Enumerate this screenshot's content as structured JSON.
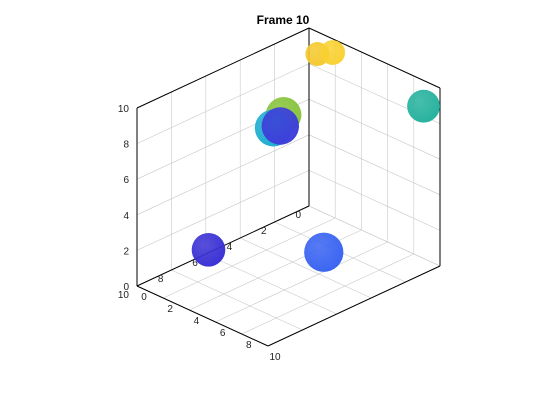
{
  "chart_data": {
    "type": "scatter",
    "title": "Frame 10",
    "xlabel": "",
    "ylabel": "",
    "zlabel": "",
    "xlim": [
      0,
      10
    ],
    "ylim": [
      0,
      10
    ],
    "zlim": [
      0,
      10
    ],
    "grid": true,
    "ticks": {
      "x": [
        "0",
        "2",
        "4",
        "6",
        "8",
        "10"
      ],
      "y": [
        "0",
        "2",
        "4",
        "6",
        "8",
        "10"
      ],
      "z": [
        "0",
        "2",
        "4",
        "6",
        "8",
        "10"
      ]
    },
    "points": [
      {
        "x": 0.3,
        "y": 2.2,
        "z": 9.5,
        "color": "#f9d132"
      },
      {
        "x": 0.5,
        "y": 1.3,
        "z": 9.2,
        "color": "#f5c92f"
      },
      {
        "x": 0.5,
        "y": 9.4,
        "z": 9.0,
        "color": "#27b29e"
      },
      {
        "x": 6.2,
        "y": 6.2,
        "z": 10.0,
        "color": "#88c43d"
      },
      {
        "x": 7.0,
        "y": 7.0,
        "z": 10.0,
        "color": "#3d3fd9"
      },
      {
        "x": 7.1,
        "y": 6.6,
        "z": 9.8,
        "color": "#1faed0"
      },
      {
        "x": 6.3,
        "y": 9.4,
        "z": 3.4,
        "color": "#3a64f2"
      },
      {
        "x": 7.9,
        "y": 2.7,
        "z": 2.0,
        "color": "#3b31d4"
      }
    ]
  }
}
